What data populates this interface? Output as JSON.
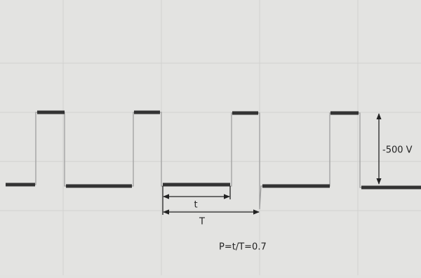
{
  "annotations": {
    "amplitude": "-500 V",
    "pulse_width": "t",
    "period": "T",
    "formula": "P=t/T=0.7"
  }
}
